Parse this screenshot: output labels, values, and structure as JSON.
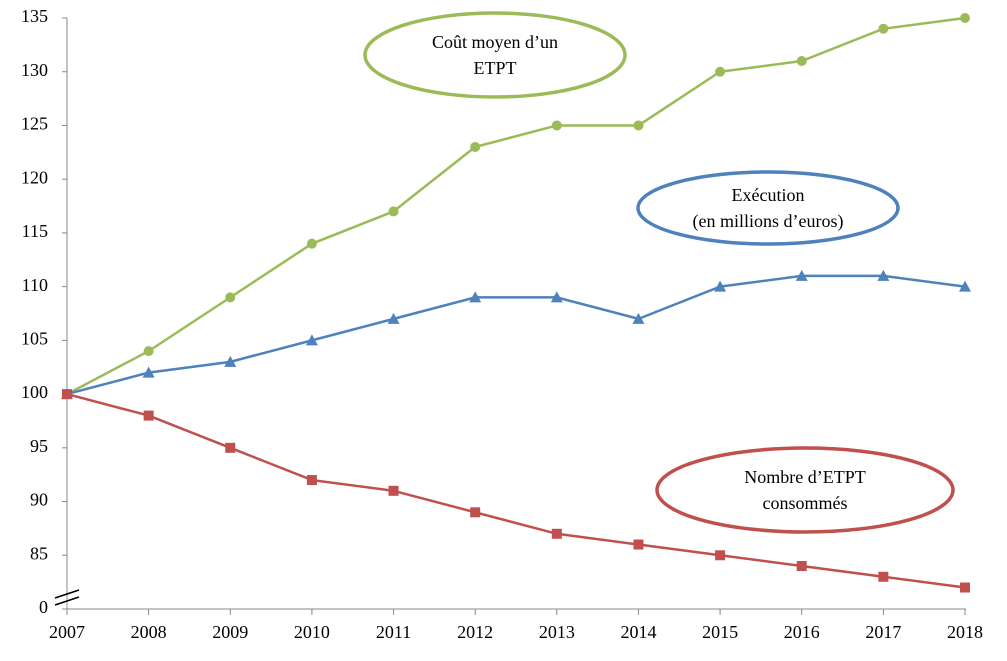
{
  "chart_data": {
    "type": "line",
    "x": [
      "2007",
      "2008",
      "2009",
      "2010",
      "2011",
      "2012",
      "2013",
      "2014",
      "2015",
      "2016",
      "2017",
      "2018"
    ],
    "series": [
      {
        "name": "Coût moyen d’un\nETPT",
        "color": "#9bbb59",
        "marker": "circle",
        "values": [
          100,
          104,
          109,
          114,
          117,
          123,
          125,
          125,
          130,
          131,
          134,
          135
        ]
      },
      {
        "name": "Exécution\n(en millions d’euros)",
        "color": "#4f81bd",
        "marker": "triangle",
        "values": [
          100,
          102,
          103,
          105,
          107,
          109,
          109,
          107,
          110,
          111,
          111,
          110
        ]
      },
      {
        "name": "Nombre d’ETPT\nconsommés",
        "color": "#c0504d",
        "marker": "square",
        "values": [
          100,
          98,
          95,
          92,
          91,
          89,
          87,
          86,
          85,
          84,
          83,
          82
        ]
      }
    ],
    "ylim": [
      0,
      135
    ],
    "y_break": [
      0,
      80
    ],
    "yticks": [
      0,
      85,
      90,
      95,
      100,
      105,
      110,
      115,
      120,
      125,
      130,
      135
    ]
  }
}
